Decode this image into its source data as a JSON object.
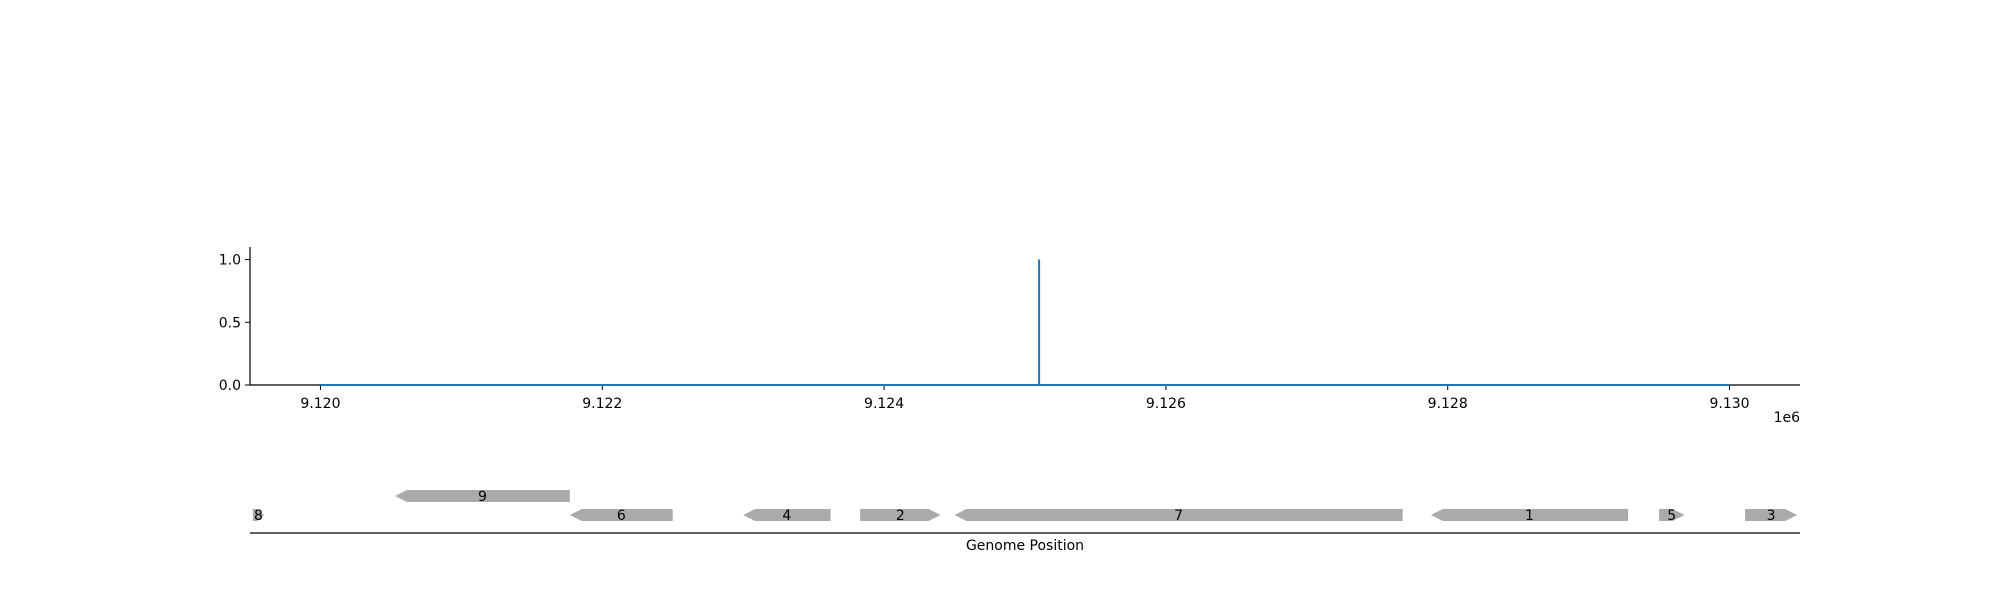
{
  "chart_data": [
    {
      "type": "line",
      "x": [
        9120000,
        9125100,
        9125100,
        9125100,
        9130000
      ],
      "y": [
        0,
        0,
        1,
        0,
        0
      ],
      "xlim": [
        9119500,
        9130500
      ],
      "ylim": [
        0,
        1.1
      ],
      "xticks": [
        9120000,
        9122000,
        9124000,
        9126000,
        9128000,
        9130000
      ],
      "xtick_labels": [
        "9.120",
        "9.122",
        "9.124",
        "9.126",
        "9.128",
        "9.130"
      ],
      "x_offset_label": "1e6",
      "yticks": [
        0,
        0.5,
        1.0
      ],
      "ytick_labels": [
        "0.0",
        "0.5",
        "1.0"
      ],
      "line_color": "#1f77b4",
      "grid": false
    },
    {
      "type": "gene_track",
      "xlabel": "Genome Position",
      "xlim": [
        9119500,
        9130500
      ],
      "feature_color": "#aaaaaa",
      "features": [
        {
          "label": "8",
          "start": 9119520,
          "end": 9119600,
          "strand": "+",
          "row": 0
        },
        {
          "label": "9",
          "start": 9120530,
          "end": 9121770,
          "strand": "-",
          "row": 1
        },
        {
          "label": "6",
          "start": 9121770,
          "end": 9122500,
          "strand": "-",
          "row": 0
        },
        {
          "label": "4",
          "start": 9123000,
          "end": 9123620,
          "strand": "-",
          "row": 0
        },
        {
          "label": "2",
          "start": 9123830,
          "end": 9124400,
          "strand": "+",
          "row": 0
        },
        {
          "label": "7",
          "start": 9124500,
          "end": 9127680,
          "strand": "-",
          "row": 0
        },
        {
          "label": "1",
          "start": 9127880,
          "end": 9129280,
          "strand": "-",
          "row": 0
        },
        {
          "label": "5",
          "start": 9129500,
          "end": 9129680,
          "strand": "+",
          "row": 0
        },
        {
          "label": "3",
          "start": 9130110,
          "end": 9130480,
          "strand": "+",
          "row": 0
        }
      ]
    }
  ]
}
